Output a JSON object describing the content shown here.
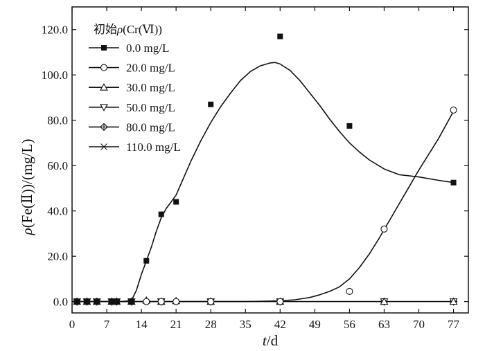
{
  "chart_data": {
    "type": "scatter",
    "title": "",
    "xlabel": "t/d",
    "xlabel_italic": "t",
    "xlabel_rest": "/d",
    "ylabel": "ρ(Fe(Ⅱ))/(mg/L)",
    "ylabel_italic": "ρ",
    "ylabel_rest": "(Fe(Ⅱ))/(mg/L)",
    "xlim": [
      0,
      80
    ],
    "ylim": [
      -5,
      130
    ],
    "x_ticks": [
      0,
      7,
      14,
      21,
      28,
      35,
      42,
      49,
      56,
      63,
      70,
      77
    ],
    "x_tick_labels": [
      "0",
      "7",
      "14",
      "21",
      "28",
      "35",
      "42",
      "49",
      "56",
      "63",
      "70",
      "77"
    ],
    "y_ticks": [
      0,
      20,
      40,
      60,
      80,
      100,
      120
    ],
    "y_tick_labels": [
      "0.0",
      "20.0",
      "40.0",
      "60.0",
      "80.0",
      "100.0",
      "120.0"
    ],
    "legend_title": "初始ρ(Cr(Ⅵ))",
    "legend_title_prefix": "初始",
    "legend_title_italic": "ρ",
    "legend_title_rest": "(Cr(Ⅵ))",
    "legend_position": "top-left",
    "grid": false,
    "series": [
      {
        "name": "0.0 mg/L",
        "marker": "filled-square",
        "x": [
          1,
          3,
          5,
          8,
          9,
          12,
          15,
          18,
          21,
          28,
          42,
          56,
          77
        ],
        "y": [
          0,
          0,
          0,
          0,
          0,
          0,
          18,
          38.5,
          44,
          87,
          117,
          77.5,
          52.5
        ],
        "fit_curve": [
          [
            0,
            0
          ],
          [
            10,
            0
          ],
          [
            12,
            0.5
          ],
          [
            13,
            5
          ],
          [
            14,
            12
          ],
          [
            15,
            18
          ],
          [
            16,
            24
          ],
          [
            17,
            31
          ],
          [
            18,
            37
          ],
          [
            19,
            41
          ],
          [
            20,
            44
          ],
          [
            21,
            47
          ],
          [
            22,
            52
          ],
          [
            24,
            62
          ],
          [
            26,
            71
          ],
          [
            28,
            79
          ],
          [
            30,
            86
          ],
          [
            32,
            92
          ],
          [
            34,
            97.5
          ],
          [
            36,
            101.5
          ],
          [
            38,
            104
          ],
          [
            40,
            105.3
          ],
          [
            41,
            105.5
          ],
          [
            42,
            104.8
          ],
          [
            44,
            102
          ],
          [
            46,
            97.5
          ],
          [
            48,
            92
          ],
          [
            50,
            86.5
          ],
          [
            52,
            80.5
          ],
          [
            54,
            75
          ],
          [
            56,
            70
          ],
          [
            58,
            66
          ],
          [
            60,
            62.5
          ],
          [
            63,
            58.5
          ],
          [
            66,
            56
          ],
          [
            70,
            55
          ],
          [
            74,
            53.5
          ],
          [
            77,
            52.5
          ]
        ]
      },
      {
        "name": "20.0 mg/L",
        "marker": "open-circle",
        "x": [
          1,
          3,
          5,
          8,
          9,
          12,
          15,
          18,
          21,
          28,
          42,
          56,
          63,
          77
        ],
        "y": [
          0,
          0,
          0,
          0,
          0,
          0,
          0,
          0,
          0,
          0,
          0,
          4.5,
          32,
          84.5
        ],
        "fit_curve": [
          [
            0,
            0
          ],
          [
            35,
            0
          ],
          [
            42,
            0.3
          ],
          [
            45,
            0.8
          ],
          [
            48,
            1.8
          ],
          [
            50,
            3
          ],
          [
            52,
            4.5
          ],
          [
            54,
            6.5
          ],
          [
            56,
            10
          ],
          [
            58,
            15
          ],
          [
            60,
            21
          ],
          [
            62,
            28
          ],
          [
            64,
            35.5
          ],
          [
            66,
            43
          ],
          [
            68,
            50.5
          ],
          [
            70,
            58
          ],
          [
            72,
            65
          ],
          [
            74,
            72
          ],
          [
            76,
            80
          ],
          [
            77,
            84
          ]
        ]
      },
      {
        "name": "30.0 mg/L",
        "marker": "open-triangle-up",
        "x": [
          1,
          3,
          5,
          8,
          9,
          12,
          15,
          18,
          21,
          28,
          42,
          63,
          77
        ],
        "y": [
          0,
          0,
          0,
          0,
          0,
          0,
          0.5,
          0,
          0.3,
          0,
          0,
          0,
          0
        ],
        "fit_curve": [
          [
            0,
            0
          ],
          [
            77,
            0
          ]
        ]
      },
      {
        "name": "50.0 mg/L",
        "marker": "open-triangle-down",
        "x": [
          1,
          3,
          5,
          8,
          9,
          12,
          18,
          28,
          42,
          63,
          77
        ],
        "y": [
          0,
          0,
          0,
          0,
          0,
          0,
          0,
          0,
          0,
          0,
          0
        ],
        "fit_curve": []
      },
      {
        "name": "80.0 mg/L",
        "marker": "diamond-cross",
        "x": [
          1,
          3,
          5,
          8,
          9,
          12,
          18,
          28,
          42,
          63,
          77
        ],
        "y": [
          0,
          0,
          0,
          0,
          0,
          0,
          0,
          0,
          0,
          0,
          0
        ],
        "fit_curve": []
      },
      {
        "name": "110.0 mg/L",
        "marker": "star-x",
        "x": [
          1,
          3,
          5,
          8,
          9,
          12,
          18,
          28,
          42,
          63,
          77
        ],
        "y": [
          0,
          0,
          0,
          0,
          0,
          0,
          0,
          0,
          0,
          0,
          0
        ],
        "fit_curve": []
      }
    ]
  }
}
